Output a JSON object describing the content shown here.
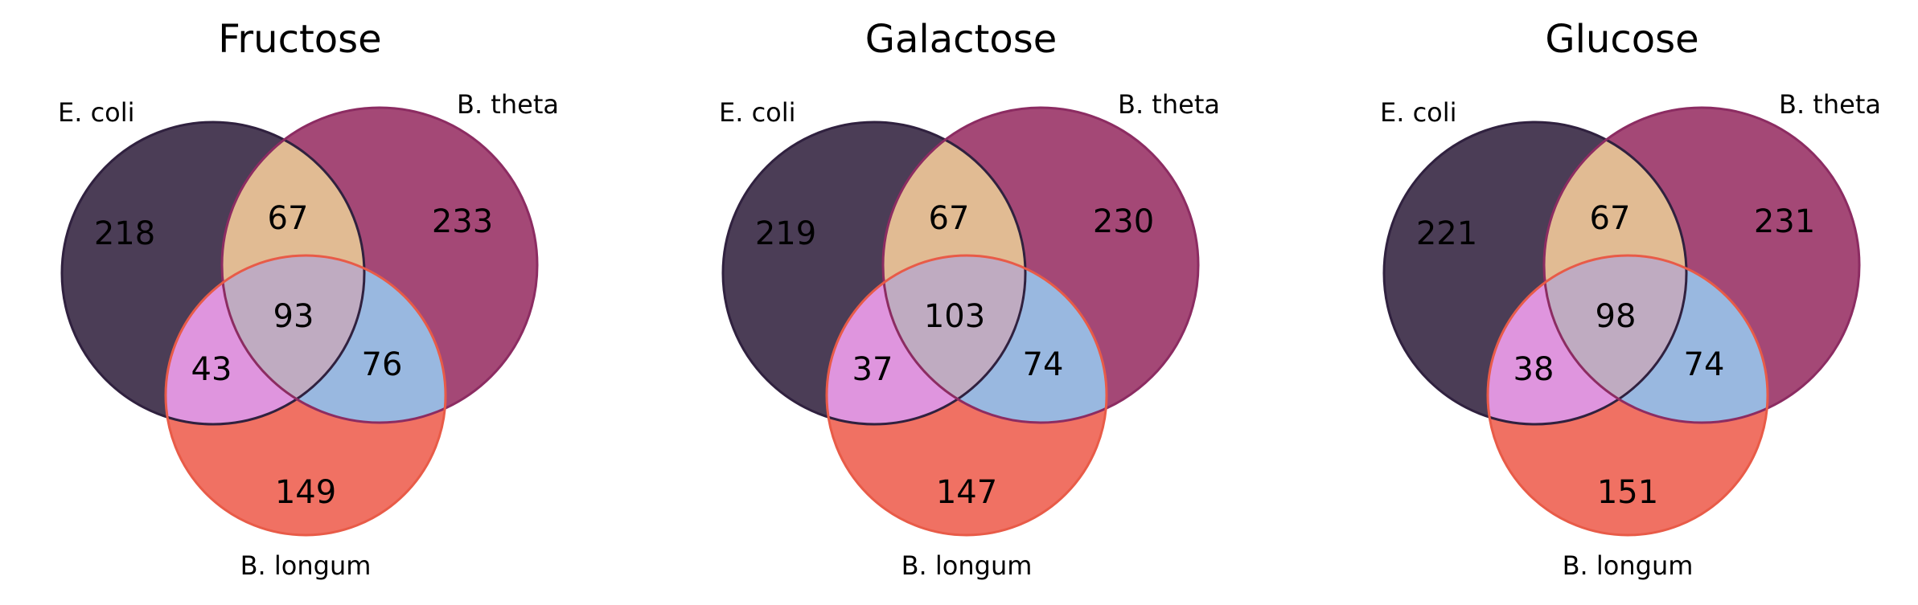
{
  "colors": {
    "a_only": "#4b3d56",
    "b_only": "#a44876",
    "ab": "#e1bb93",
    "c_only": "#f07163",
    "ac": "#df95de",
    "bc": "#99b8e0",
    "abc": "#bfabc1",
    "a_edge": "#30213f",
    "b_edge": "#8c2c62",
    "c_edge": "#e85b48"
  },
  "chart_data": [
    {
      "type": "venn3",
      "title": "Fructose",
      "sets": [
        "E. coli",
        "B. theta",
        "B. longum"
      ],
      "regions": {
        "a_only": 218,
        "b_only": 233,
        "ab": 67,
        "c_only": 149,
        "ac": 43,
        "bc": 76,
        "abc": 93
      }
    },
    {
      "type": "venn3",
      "title": "Galactose",
      "sets": [
        "E. coli",
        "B. theta",
        "B. longum"
      ],
      "regions": {
        "a_only": 219,
        "b_only": 230,
        "ab": 67,
        "c_only": 147,
        "ac": 37,
        "bc": 74,
        "abc": 103
      }
    },
    {
      "type": "venn3",
      "title": "Glucose",
      "sets": [
        "E. coli",
        "B. theta",
        "B. longum"
      ],
      "regions": {
        "a_only": 221,
        "b_only": 231,
        "ab": 67,
        "c_only": 151,
        "ac": 38,
        "bc": 74,
        "abc": 98
      }
    }
  ]
}
